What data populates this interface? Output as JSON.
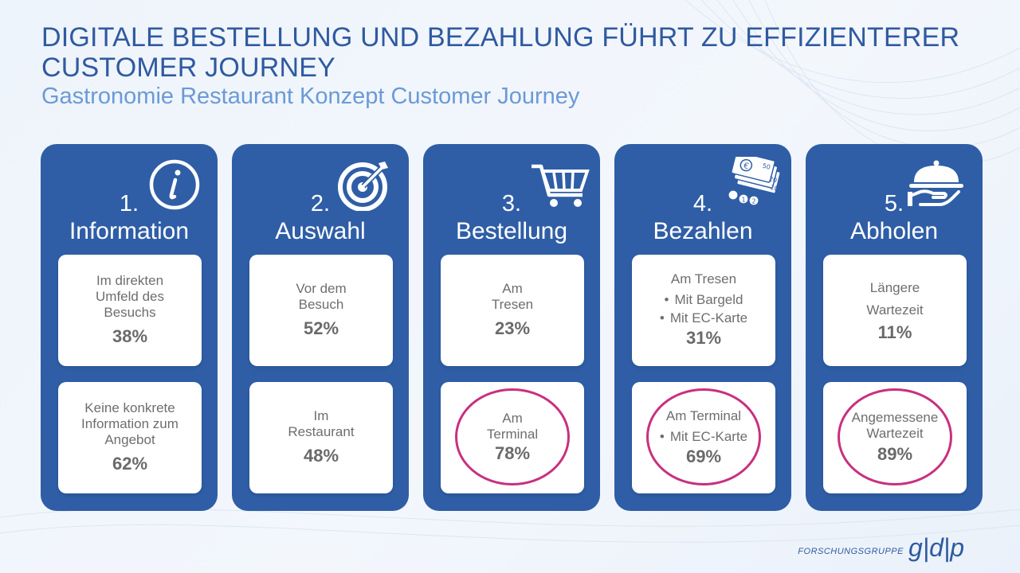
{
  "header": {
    "title": "DIGITALE BESTELLUNG UND BEZAHLUNG FÜHRT ZU EFFIZIENTERER CUSTOMER JOURNEY",
    "subtitle": "Gastronomie Restaurant Konzept Customer Journey"
  },
  "steps": [
    {
      "num": "1.",
      "title": "Information",
      "icon": "info-icon",
      "top": {
        "text": "Im direkten Umfeld des Besuchs",
        "pct": "38%"
      },
      "bottom": {
        "text": "Keine konkrete Information zum Angebot",
        "pct": "62%"
      }
    },
    {
      "num": "2.",
      "title": "Auswahl",
      "icon": "target-icon",
      "top": {
        "text": "Vor dem Besuch",
        "pct": "52%"
      },
      "bottom": {
        "text": "Im Restaurant",
        "pct": "48%"
      }
    },
    {
      "num": "3.",
      "title": "Bestellung",
      "icon": "shopping-cart-icon",
      "top": {
        "text": "Am Tresen",
        "pct": "23%"
      },
      "bottom": {
        "text": "Am Terminal",
        "pct": "78%"
      }
    },
    {
      "num": "4.",
      "title": "Bezahlen",
      "icon": "money-icon",
      "top": {
        "text": "Am Tresen",
        "items": [
          "Mit Bargeld",
          "Mit EC-Karte"
        ],
        "pct": "31%"
      },
      "bottom": {
        "text": "Am Terminal",
        "items": [
          "Mit EC-Karte"
        ],
        "pct": "69%"
      }
    },
    {
      "num": "5.",
      "title": "Abholen",
      "icon": "cloche-hand-icon",
      "top": {
        "text": "Längere Wartezeit",
        "pct": "11%"
      },
      "bottom": {
        "text": "Angemessene Wartezeit",
        "pct": "89%"
      }
    }
  ],
  "footer": {
    "brand_label": "FORSCHUNGSGRUPPE",
    "brand_mark": "g|d|p"
  },
  "colors": {
    "card": "#2f5ea6",
    "title": "#2f5aa0",
    "subtitle": "#6b9ad6",
    "highlight": "#c8307f"
  }
}
